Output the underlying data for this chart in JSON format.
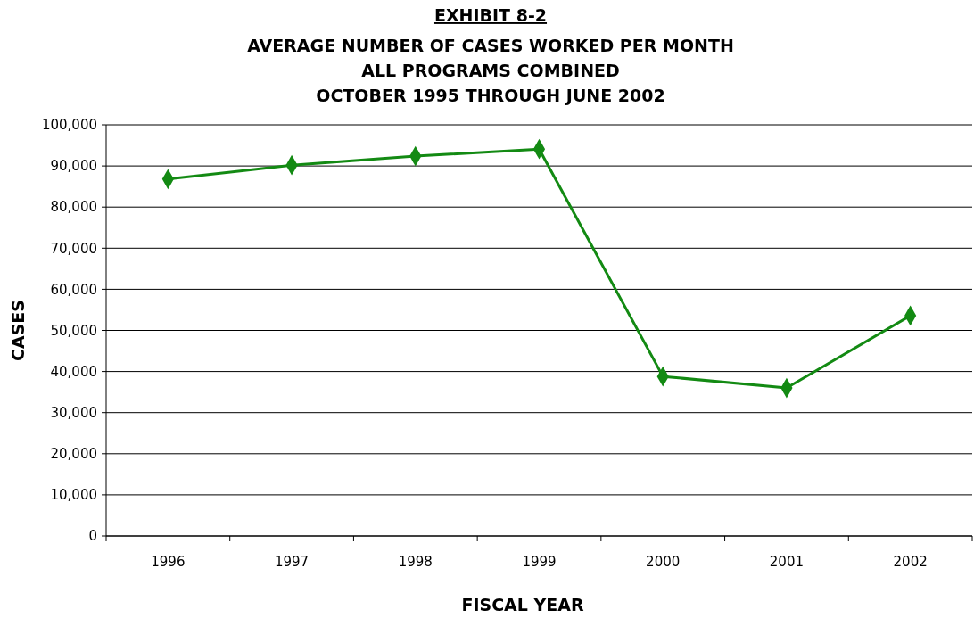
{
  "chart_data": {
    "type": "line",
    "title": "EXHIBIT 8-2",
    "subtitle": "AVERAGE NUMBER OF CASES WORKED PER MONTH\nALL PROGRAMS COMBINED\nOCTOBER 1995 THROUGH JUNE 2002",
    "xlabel": "FISCAL YEAR",
    "ylabel": "CASES",
    "categories": [
      "1996",
      "1997",
      "1998",
      "1999",
      "2000",
      "2001",
      "2002"
    ],
    "series": [
      {
        "color": "#138a13",
        "values": [
          86800,
          90200,
          92400,
          94100,
          38800,
          36000,
          53600
        ]
      }
    ],
    "ylim": [
      0,
      100000
    ],
    "yticks": [
      {
        "value": 0,
        "label": "0"
      },
      {
        "value": 10000,
        "label": "10,000"
      },
      {
        "value": 20000,
        "label": "20,000"
      },
      {
        "value": 30000,
        "label": "30,000"
      },
      {
        "value": 40000,
        "label": "40,000"
      },
      {
        "value": 50000,
        "label": "50,000"
      },
      {
        "value": 60000,
        "label": "60,000"
      },
      {
        "value": 70000,
        "label": "70,000"
      },
      {
        "value": 80000,
        "label": "80,000"
      },
      {
        "value": 90000,
        "label": "90,000"
      },
      {
        "value": 100000,
        "label": "100,000"
      }
    ],
    "grid": "y",
    "marker": "diamond",
    "line_style": "solid"
  }
}
